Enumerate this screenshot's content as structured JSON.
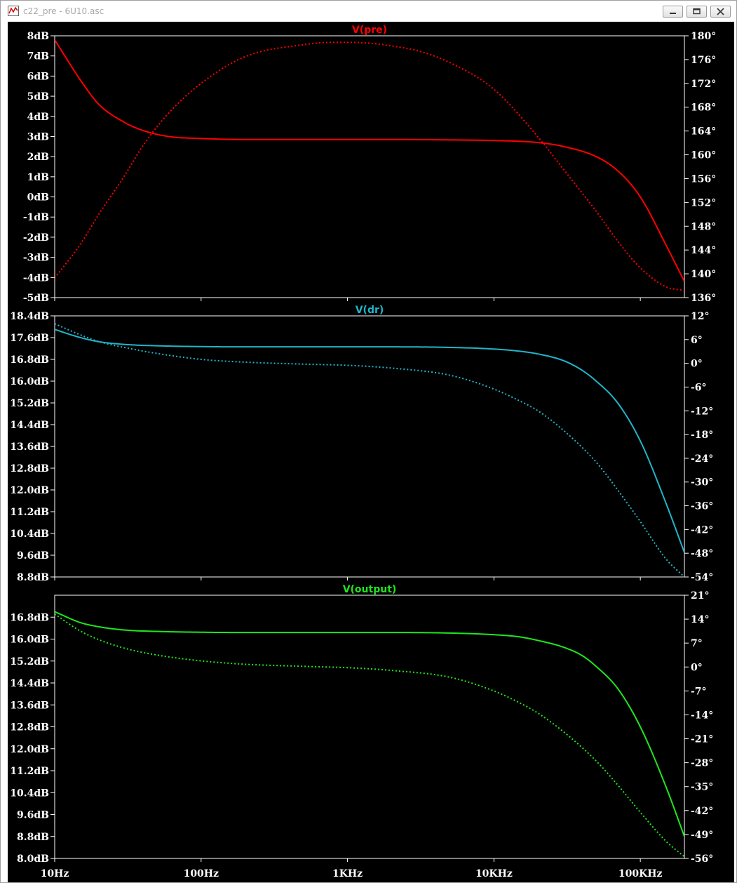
{
  "window": {
    "title": "c22_pre - 6U10.asc"
  },
  "chart_data": {
    "type": "line",
    "x_axis": {
      "scale": "log",
      "range": [
        10,
        200000
      ],
      "tick_values": [
        10,
        100,
        1000,
        10000,
        100000
      ],
      "tick_labels": [
        "10Hz",
        "100Hz",
        "1KHz",
        "10KHz",
        "100KHz"
      ]
    },
    "panes": [
      {
        "title": "V(pre)",
        "color": "#ff0000",
        "left_axis": {
          "range": [
            -5,
            8
          ],
          "ticks": [
            8,
            7,
            6,
            5,
            4,
            3,
            2,
            1,
            0,
            -1,
            -2,
            -3,
            -4,
            -5
          ],
          "tick_labels": [
            "8dB",
            "7dB",
            "6dB",
            "5dB",
            "4dB",
            "3dB",
            "2dB",
            "1dB",
            "0dB",
            "-1dB",
            "-2dB",
            "-3dB",
            "-4dB",
            "-5dB"
          ]
        },
        "right_axis": {
          "range": [
            136,
            180
          ],
          "ticks": [
            180,
            176,
            172,
            168,
            164,
            160,
            156,
            152,
            148,
            144,
            140,
            136
          ],
          "tick_labels": [
            "180°",
            "176°",
            "172°",
            "168°",
            "164°",
            "160°",
            "156°",
            "152°",
            "148°",
            "144°",
            "140°",
            "136°"
          ]
        },
        "magnitude": {
          "x": [
            10,
            15,
            20,
            30,
            40,
            60,
            100,
            200,
            500,
            1000,
            2000,
            5000,
            10000,
            20000,
            30000,
            50000,
            70000,
            100000,
            150000,
            200000
          ],
          "y": [
            7.8,
            5.8,
            4.6,
            3.7,
            3.3,
            3.0,
            2.9,
            2.85,
            2.85,
            2.85,
            2.85,
            2.83,
            2.8,
            2.7,
            2.5,
            2.0,
            1.3,
            0.0,
            -2.4,
            -4.2
          ]
        },
        "phase": {
          "x": [
            10,
            15,
            20,
            30,
            40,
            60,
            100,
            200,
            500,
            800,
            1000,
            1500,
            2000,
            3000,
            5000,
            10000,
            20000,
            30000,
            50000,
            70000,
            100000,
            150000,
            200000
          ],
          "y": [
            139.3,
            145.0,
            150.0,
            156.5,
            161.5,
            167.0,
            172.0,
            176.5,
            178.5,
            178.9,
            178.9,
            178.7,
            178.3,
            177.5,
            175.5,
            171.0,
            163.0,
            157.5,
            150.5,
            145.5,
            141.0,
            137.8,
            137.2
          ]
        }
      },
      {
        "title": "V(dr)",
        "color": "#21b5c8",
        "left_axis": {
          "range": [
            8.8,
            18.4
          ],
          "ticks": [
            18.4,
            17.6,
            16.8,
            16.0,
            15.2,
            14.4,
            13.6,
            12.8,
            12.0,
            11.2,
            10.4,
            9.6,
            8.8
          ],
          "tick_labels": [
            "18.4dB",
            "17.6dB",
            "16.8dB",
            "16.0dB",
            "15.2dB",
            "14.4dB",
            "13.6dB",
            "12.8dB",
            "12.0dB",
            "11.2dB",
            "10.4dB",
            "9.6dB",
            "8.8dB"
          ]
        },
        "right_axis": {
          "range": [
            -54,
            12
          ],
          "ticks": [
            12,
            6,
            0,
            -6,
            -12,
            -18,
            -24,
            -30,
            -36,
            -42,
            -48,
            -54
          ],
          "tick_labels": [
            "12°",
            "6°",
            "0°",
            "-6°",
            "-12°",
            "-18°",
            "-24°",
            "-30°",
            "-36°",
            "-42°",
            "-48°",
            "-54°"
          ]
        },
        "magnitude": {
          "x": [
            10,
            15,
            20,
            30,
            50,
            100,
            200,
            500,
            1000,
            2000,
            5000,
            10000,
            15000,
            20000,
            30000,
            40000,
            50000,
            70000,
            100000,
            150000,
            200000
          ],
          "y": [
            17.9,
            17.6,
            17.45,
            17.35,
            17.3,
            17.27,
            17.26,
            17.26,
            17.26,
            17.26,
            17.24,
            17.18,
            17.1,
            17.0,
            16.75,
            16.4,
            16.0,
            15.2,
            13.8,
            11.5,
            9.7
          ]
        },
        "phase": {
          "x": [
            10,
            15,
            20,
            30,
            50,
            100,
            200,
            500,
            1000,
            2000,
            5000,
            10000,
            15000,
            20000,
            30000,
            50000,
            70000,
            100000,
            150000,
            200000
          ],
          "y": [
            10.0,
            7.2,
            5.5,
            4.0,
            2.5,
            1.0,
            0.3,
            -0.2,
            -0.5,
            -1.2,
            -3.0,
            -6.5,
            -9.5,
            -12.0,
            -17.0,
            -25.0,
            -32.0,
            -40.0,
            -49.5,
            -54.0
          ]
        }
      },
      {
        "title": "V(output)",
        "color": "#1ee61e",
        "left_axis": {
          "range": [
            8.0,
            17.6
          ],
          "ticks": [
            16.8,
            16.0,
            15.2,
            14.4,
            13.6,
            12.8,
            12.0,
            11.2,
            10.4,
            9.6,
            8.8,
            8.0
          ],
          "tick_labels": [
            "16.8dB",
            "16.0dB",
            "15.2dB",
            "14.4dB",
            "13.6dB",
            "12.8dB",
            "12.0dB",
            "11.2dB",
            "10.4dB",
            "9.6dB",
            "8.8dB",
            "8.0dB"
          ]
        },
        "right_axis": {
          "range": [
            -56,
            21
          ],
          "ticks": [
            21,
            14,
            7,
            0,
            -7,
            -14,
            -21,
            -28,
            -35,
            -42,
            -49,
            -56
          ],
          "tick_labels": [
            "21°",
            "14°",
            "7°",
            "0°",
            "-7°",
            "-14°",
            "-21°",
            "-28°",
            "-35°",
            "-42°",
            "-49°",
            "-56°"
          ]
        },
        "magnitude": {
          "x": [
            10,
            15,
            20,
            30,
            50,
            100,
            200,
            500,
            1000,
            2000,
            5000,
            10000,
            15000,
            20000,
            30000,
            40000,
            50000,
            70000,
            100000,
            150000,
            200000
          ],
          "y": [
            17.0,
            16.6,
            16.45,
            16.33,
            16.28,
            16.25,
            16.24,
            16.24,
            16.24,
            16.24,
            16.22,
            16.16,
            16.08,
            15.95,
            15.7,
            15.4,
            15.0,
            14.2,
            12.8,
            10.6,
            8.8
          ]
        },
        "phase": {
          "x": [
            10,
            15,
            20,
            30,
            50,
            100,
            200,
            500,
            1000,
            2000,
            5000,
            10000,
            15000,
            20000,
            30000,
            50000,
            70000,
            100000,
            150000,
            200000
          ],
          "y": [
            15.5,
            10.5,
            8.0,
            5.5,
            3.5,
            1.8,
            0.8,
            0.2,
            -0.2,
            -1.0,
            -3.0,
            -7.0,
            -10.5,
            -13.5,
            -19.0,
            -27.5,
            -34.5,
            -42.5,
            -51.0,
            -55.5
          ]
        }
      }
    ]
  }
}
